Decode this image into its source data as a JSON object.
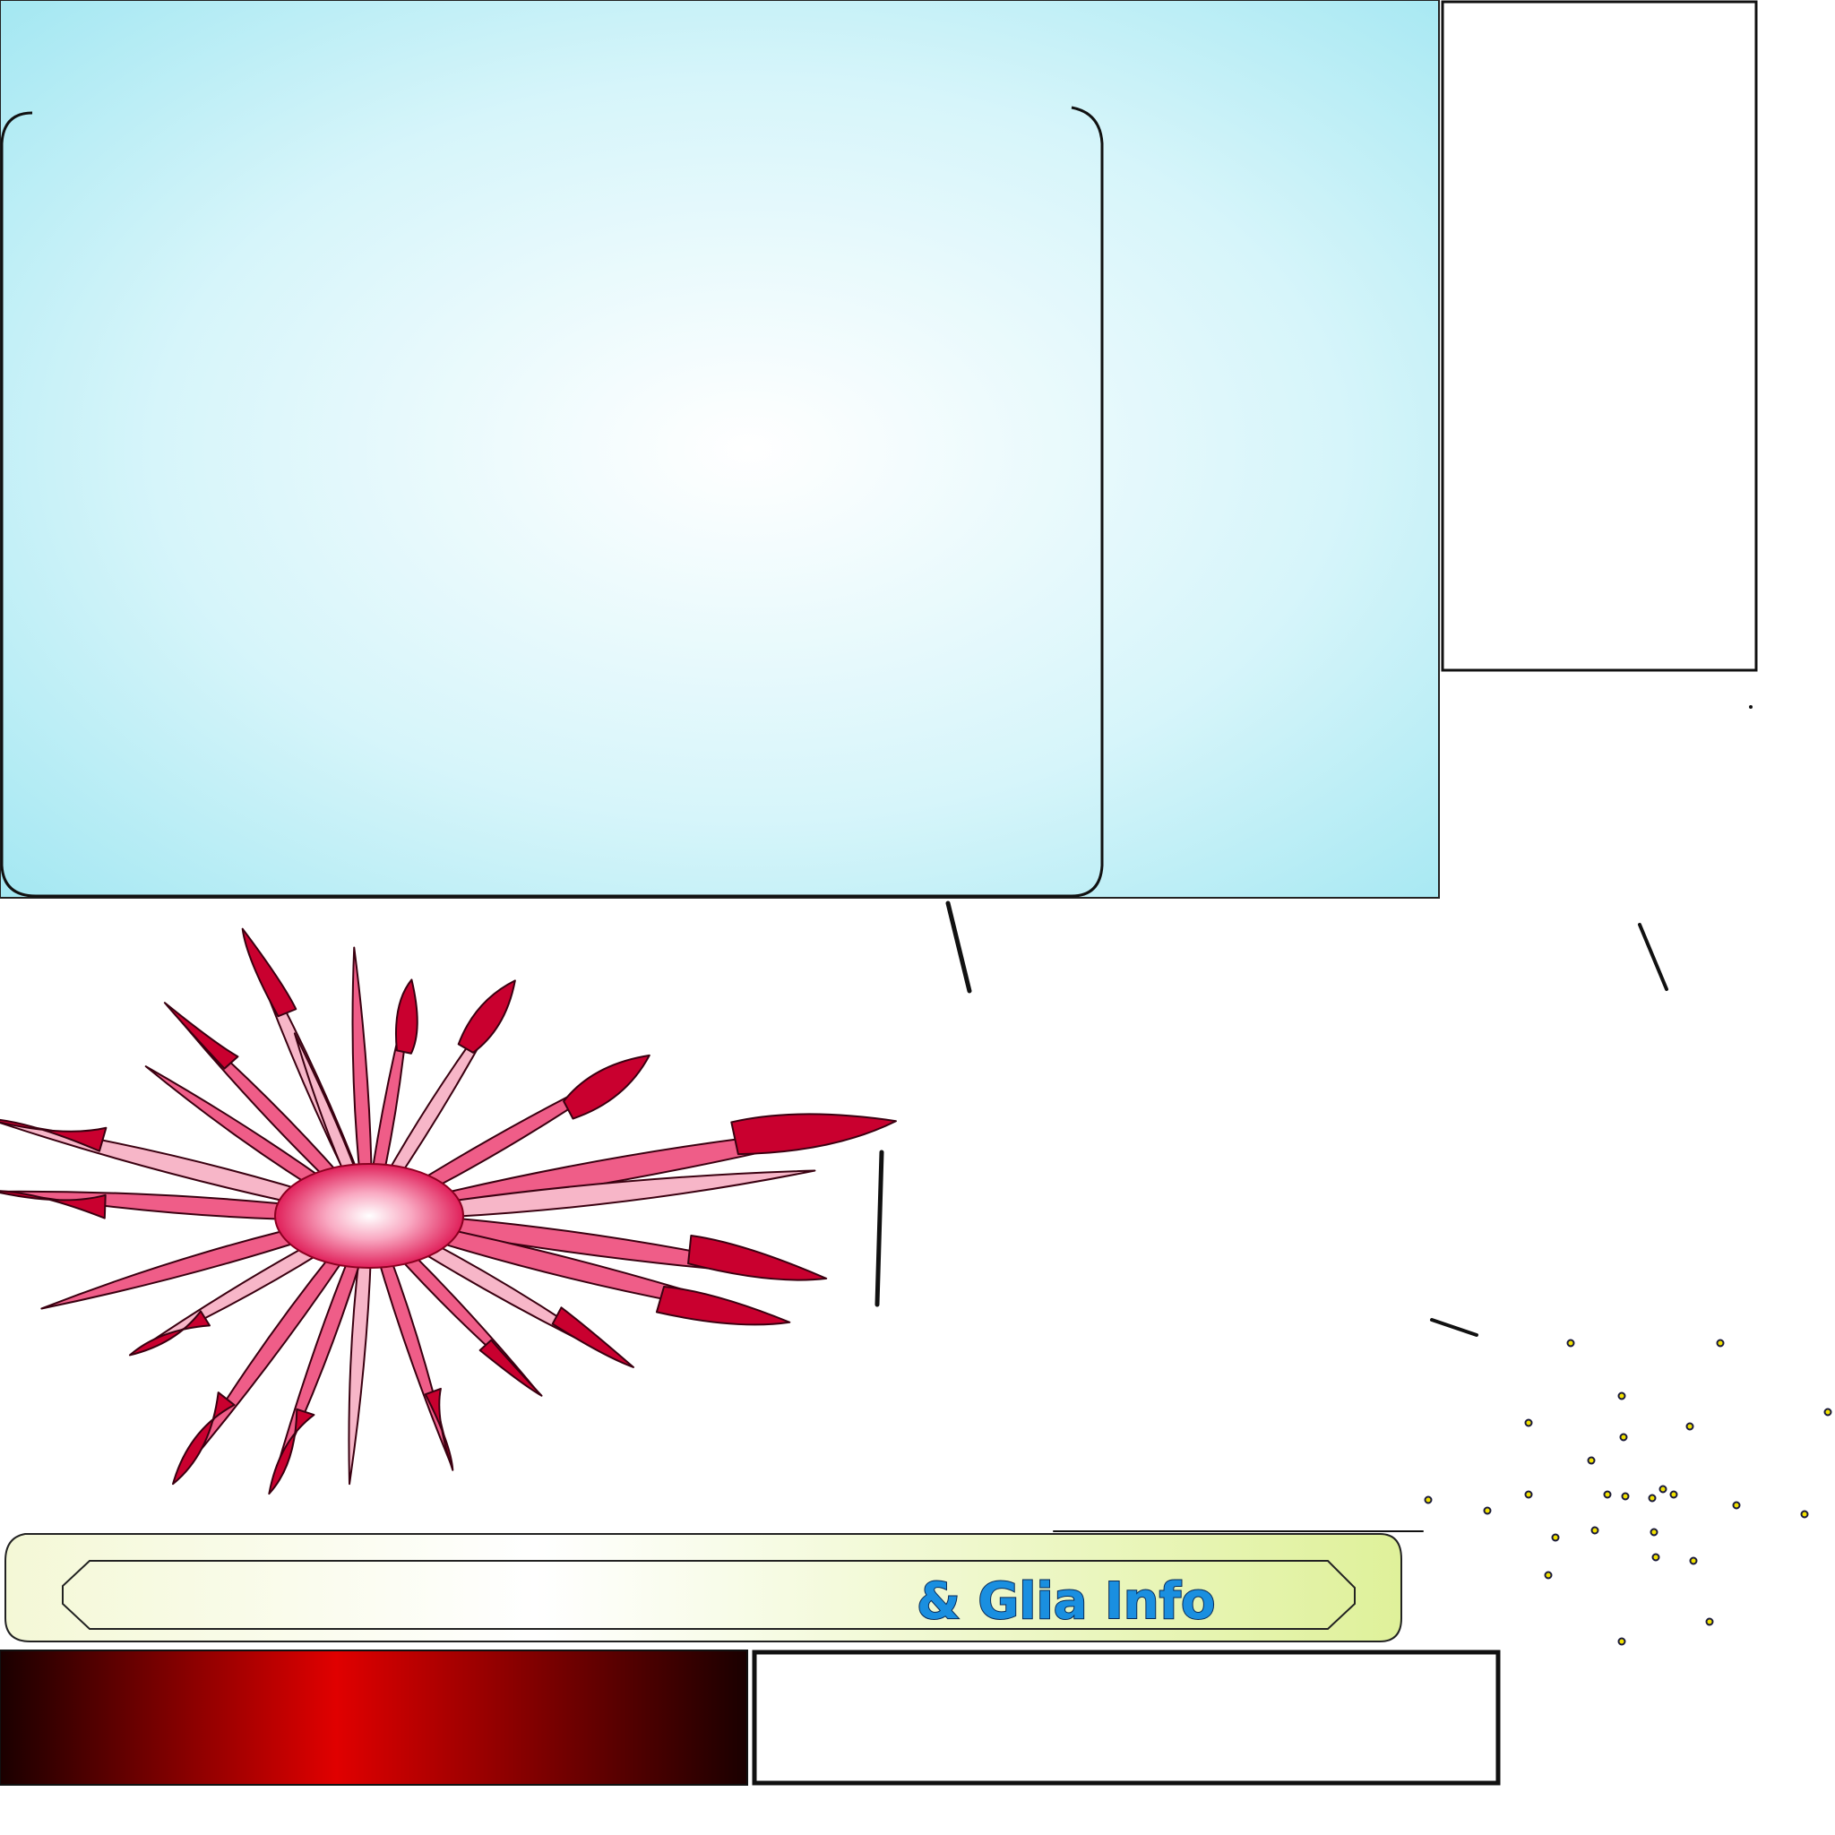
{
  "banner": {
    "title": "& Glia Info"
  },
  "colors": {
    "panel_edge": "#9fe6f1",
    "panel_center": "#ffffff",
    "neuron_dark": "#c9002f",
    "neuron_light": "#f7b6c8",
    "banner_green": "#dff19a",
    "banner_text": "#1a8fe0",
    "red_bar_center": "#e00000",
    "red_bar_edge": "#1a0000",
    "particle": "#f2e200"
  },
  "icons": {
    "neuron": "astrocyte-glia-cell-illustration"
  }
}
